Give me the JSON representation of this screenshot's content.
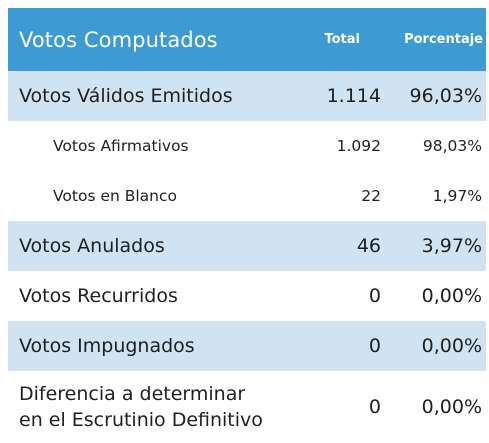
{
  "header": {
    "title": "Votos Computados",
    "col_total": "Total",
    "col_pct": "Porcentaje"
  },
  "rows": [
    {
      "label": "Votos Válidos Emitidos",
      "total": "1.114",
      "pct": "96,03%"
    },
    {
      "label": "Votos Afirmativos",
      "total": "1.092",
      "pct": "98,03%"
    },
    {
      "label": "Votos en Blanco",
      "total": "22",
      "pct": "1,97%"
    },
    {
      "label": "Votos Anulados",
      "total": "46",
      "pct": "3,97%"
    },
    {
      "label": "Votos Recurridos",
      "total": "0",
      "pct": "0,00%"
    },
    {
      "label": "Votos Impugnados",
      "total": "0",
      "pct": "0,00%"
    },
    {
      "label_line1": "Diferencia a determinar",
      "label_line2": "en el Escrutinio Definitivo",
      "total": "0",
      "pct": "0,00%"
    }
  ],
  "colors": {
    "header_bg": "#3e9ad2",
    "shaded_row_bg": "#cfe3f2",
    "text": "#1f1f1f"
  }
}
